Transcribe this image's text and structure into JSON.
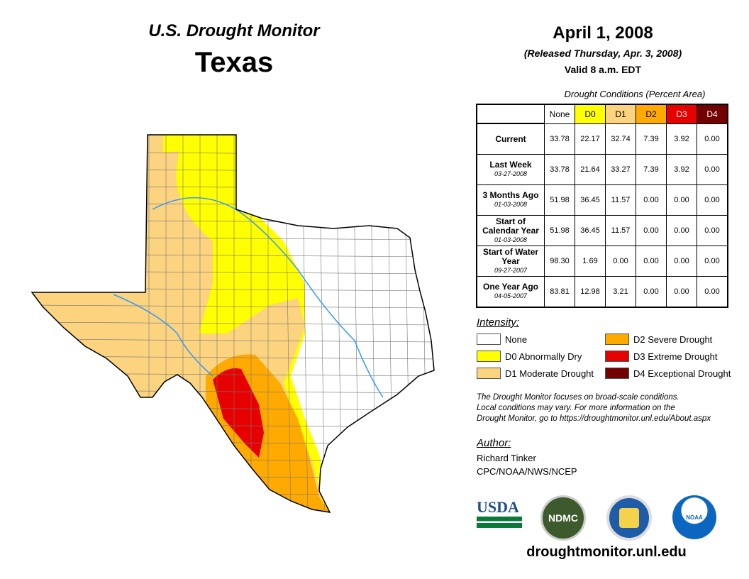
{
  "header": {
    "product": "U.S. Drought Monitor",
    "region": "Texas",
    "date": "April 1, 2008",
    "released": "(Released Thursday, Apr. 3, 2008)",
    "valid": "Valid 8 a.m. EDT"
  },
  "table": {
    "title": "Drought Conditions (Percent Area)",
    "columns": [
      "None",
      "D0",
      "D1",
      "D2",
      "D3",
      "D4"
    ],
    "rows": [
      {
        "label": "Current",
        "date": "",
        "values": [
          "33.78",
          "22.17",
          "32.74",
          "7.39",
          "3.92",
          "0.00"
        ]
      },
      {
        "label": "Last Week",
        "date": "03-27-2008",
        "values": [
          "33.78",
          "21.64",
          "33.27",
          "7.39",
          "3.92",
          "0.00"
        ]
      },
      {
        "label": "3 Months Ago",
        "date": "01-03-2008",
        "values": [
          "51.98",
          "36.45",
          "11.57",
          "0.00",
          "0.00",
          "0.00"
        ]
      },
      {
        "label": "Start of Calendar Year",
        "date": "01-03-2008",
        "values": [
          "51.98",
          "36.45",
          "11.57",
          "0.00",
          "0.00",
          "0.00"
        ]
      },
      {
        "label": "Start of Water Year",
        "date": "09-27-2007",
        "values": [
          "98.30",
          "1.69",
          "0.00",
          "0.00",
          "0.00",
          "0.00"
        ]
      },
      {
        "label": "One Year Ago",
        "date": "04-05-2007",
        "values": [
          "83.81",
          "12.98",
          "3.21",
          "0.00",
          "0.00",
          "0.00"
        ]
      }
    ]
  },
  "legend": {
    "title": "Intensity:",
    "items": [
      {
        "label": "None",
        "color": "#ffffff"
      },
      {
        "label": "D0 Abnormally Dry",
        "color": "#ffff00"
      },
      {
        "label": "D1 Moderate Drought",
        "color": "#fcd37f"
      },
      {
        "label": "D2 Severe Drought",
        "color": "#ffaa00"
      },
      {
        "label": "D3 Extreme Drought",
        "color": "#e60000"
      },
      {
        "label": "D4 Exceptional Drought",
        "color": "#730000"
      }
    ]
  },
  "note": [
    "The Drought Monitor focuses on broad-scale conditions.",
    "Local conditions may vary. For more information on the",
    "Drought Monitor, go to https://droughtmonitor.unl.edu/About.aspx"
  ],
  "author": {
    "title": "Author:",
    "name": "Richard Tinker",
    "org": "CPC/NOAA/NWS/NCEP"
  },
  "logos": {
    "usda": "USDA",
    "ndmc": "NDMC",
    "noaa": "NOAA"
  },
  "url": "droughtmonitor.unl.edu"
}
